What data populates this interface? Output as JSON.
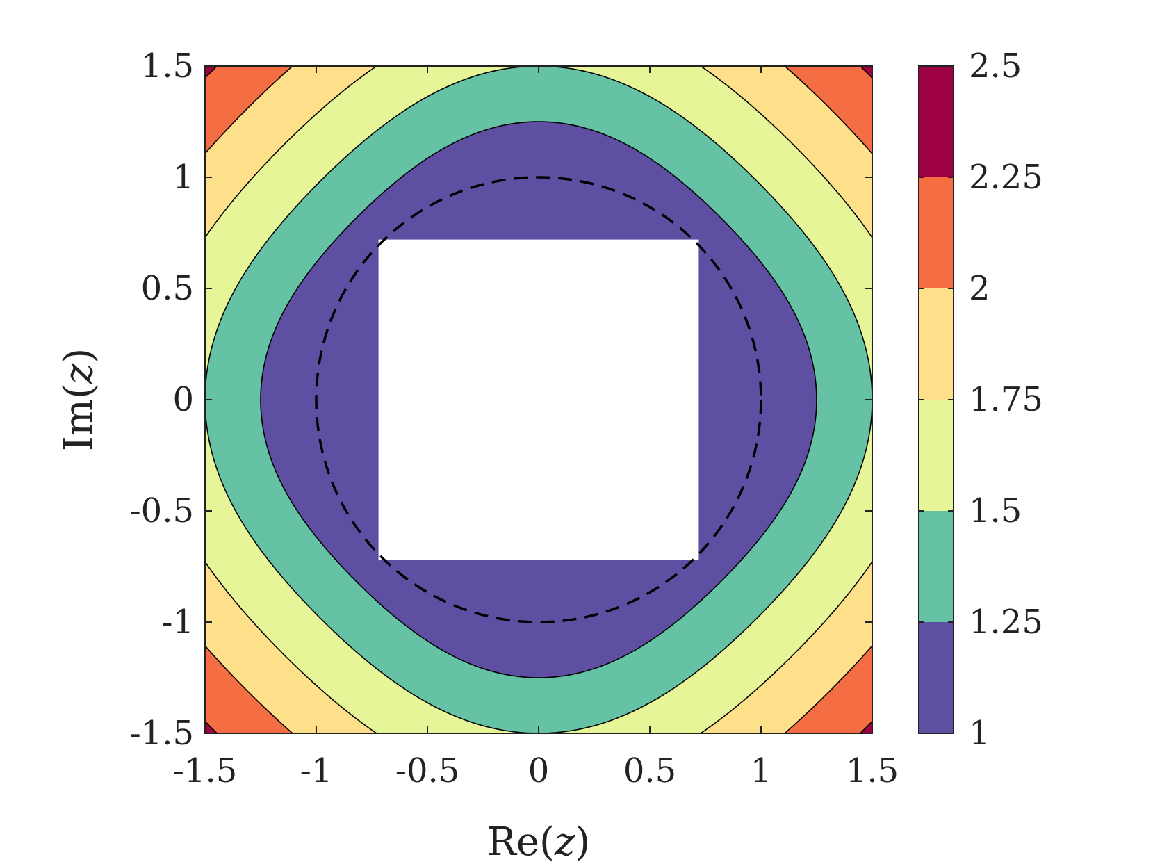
{
  "chart_data": {
    "type": "heatmap",
    "subtype": "filled-contour",
    "xlabel": {
      "prefix": "Re(",
      "var": "z",
      "suffix": ")"
    },
    "ylabel": {
      "prefix": "Im(",
      "var": "z",
      "suffix": ")"
    },
    "xlim": [
      -1.5,
      1.5
    ],
    "ylim": [
      -1.5,
      1.5
    ],
    "xticks": [
      -1.5,
      -1,
      -0.5,
      0,
      0.5,
      1,
      1.5
    ],
    "yticks": [
      -1.5,
      -1,
      -0.5,
      0,
      0.5,
      1,
      1.5
    ],
    "xtick_labels": [
      "-1.5",
      "-1",
      "-0.5",
      "0",
      "0.5",
      "1",
      "1.5"
    ],
    "ytick_labels": [
      "-1.5",
      "-1",
      "-0.5",
      "0",
      "0.5",
      "1",
      "1.5"
    ],
    "grid": false,
    "contour_levels": [
      1,
      1.25,
      1.5,
      1.75,
      2,
      2.25,
      2.5
    ],
    "colorbar": {
      "location": "right",
      "ticks": [
        1,
        1.25,
        1.5,
        1.75,
        2,
        2.25,
        2.5
      ],
      "tick_labels": [
        "1",
        "1.25",
        "1.5",
        "1.75",
        "2",
        "2.25",
        "2.5"
      ],
      "band_colors": [
        "#5e4fa2",
        "#66c2a5",
        "#e6f598",
        "#fee08b",
        "#f46d43",
        "#9e0142"
      ]
    },
    "excluded_region": {
      "shape": "square",
      "x": [
        -0.72,
        0.72
      ],
      "y": [
        -0.72,
        0.72
      ]
    },
    "reference_curve": {
      "shape": "circle",
      "center": [
        0,
        0
      ],
      "radius": 1,
      "style": "dashed"
    }
  }
}
